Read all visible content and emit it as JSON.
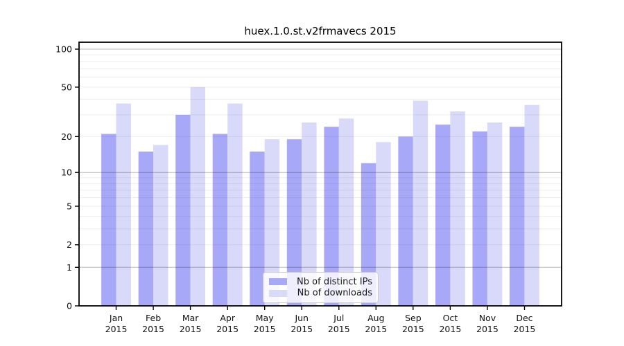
{
  "title": "huex.1.0.st.v2frmavecs 2015",
  "chart_data": {
    "type": "bar",
    "title": "huex.1.0.st.v2frmavecs 2015",
    "categories": [
      "Jan",
      "Feb",
      "Mar",
      "Apr",
      "May",
      "Jun",
      "Jul",
      "Aug",
      "Sep",
      "Oct",
      "Nov",
      "Dec"
    ],
    "xtick_year": "2015",
    "series": [
      {
        "name": "Nb of distinct IPs",
        "color": "#a8a8f8",
        "values": [
          21,
          15,
          30,
          21,
          15,
          19,
          24,
          12,
          20,
          25,
          22,
          24
        ]
      },
      {
        "name": "Nb of downloads",
        "color": "#d9d9fa",
        "values": [
          37,
          17,
          50,
          37,
          19,
          26,
          28,
          18,
          39,
          32,
          26,
          36
        ]
      }
    ],
    "xlabel": "",
    "ylabel": "",
    "yscale": "log1p",
    "yticks": [
      0,
      1,
      2,
      5,
      10,
      20,
      50,
      100
    ],
    "major_gridlines": [
      1,
      10,
      100
    ],
    "minor_gridlines": [
      2,
      3,
      4,
      5,
      6,
      7,
      8,
      9,
      20,
      30,
      40,
      50,
      60,
      70,
      80,
      90
    ],
    "ylim": [
      0,
      114
    ],
    "grid": true,
    "legend_position": "lower center"
  }
}
